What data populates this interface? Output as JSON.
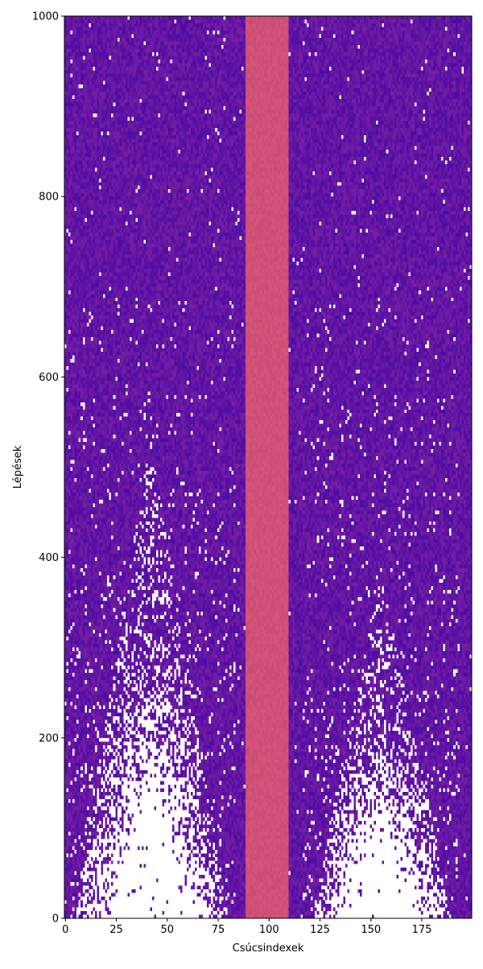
{
  "chart_data": {
    "type": "heatmap",
    "title": "",
    "xlabel": "Csúcsindexek",
    "ylabel": "Lépések",
    "xlim": [
      0,
      199
    ],
    "ylim": [
      0,
      1000
    ],
    "x_ticks": [
      0,
      25,
      50,
      75,
      100,
      125,
      150,
      175
    ],
    "y_ticks": [
      0,
      200,
      400,
      600,
      800,
      1000
    ],
    "x_tick_labels": [
      "0",
      "25",
      "50",
      "75",
      "100",
      "125",
      "150",
      "175"
    ],
    "y_tick_labels": [
      "0",
      "200",
      "400",
      "600",
      "800",
      "1000"
    ],
    "colormap": "plasma",
    "colors": {
      "background_low": "#4b0ba5",
      "background_mid": "#7a1fa2",
      "band": "#cf5077",
      "empty_cells": "#ffffff"
    },
    "constant_band": {
      "x_start": 89,
      "x_end": 109,
      "y_start": 0,
      "y_end": 1000
    },
    "sparse_regions": [
      {
        "center_x": 42,
        "peak_step": 280,
        "base_half_width": 38
      },
      {
        "center_x": 155,
        "peak_step": 200,
        "base_half_width": 35
      }
    ],
    "grid": false,
    "legend": "none"
  }
}
